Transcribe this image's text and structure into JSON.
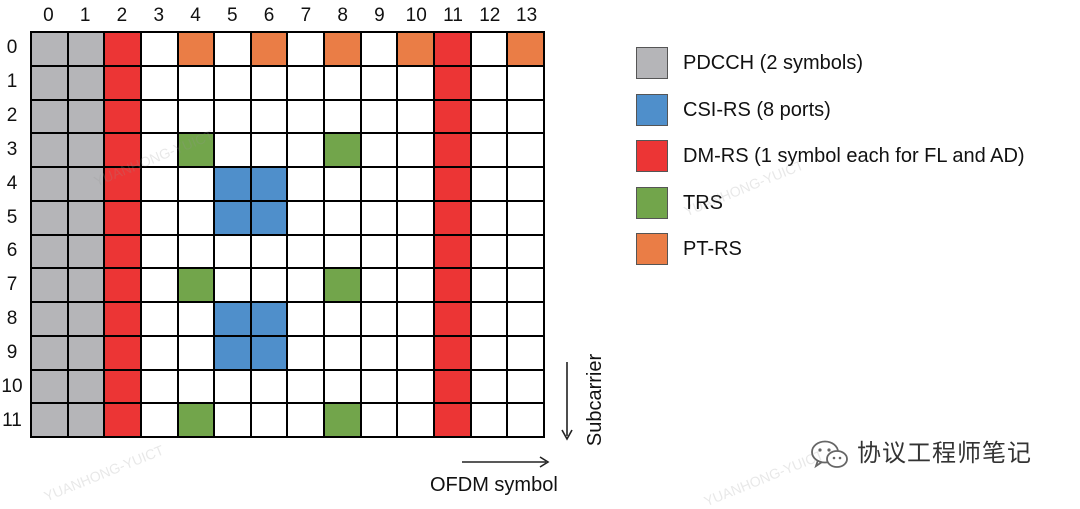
{
  "chart_data": {
    "type": "resource-grid",
    "x_axis_label": "OFDM symbol",
    "y_axis_label": "Subcarrier",
    "columns": [
      "0",
      "1",
      "2",
      "3",
      "4",
      "5",
      "6",
      "7",
      "8",
      "9",
      "10",
      "11",
      "12",
      "13"
    ],
    "rows": [
      "0",
      "1",
      "2",
      "3",
      "4",
      "5",
      "6",
      "7",
      "8",
      "9",
      "10",
      "11"
    ],
    "cells": [
      [
        "pdcch",
        "pdcch",
        "dmrs",
        "empty",
        "ptrs",
        "empty",
        "ptrs",
        "empty",
        "ptrs",
        "empty",
        "ptrs",
        "dmrs",
        "empty",
        "ptrs"
      ],
      [
        "pdcch",
        "pdcch",
        "dmrs",
        "empty",
        "empty",
        "empty",
        "empty",
        "empty",
        "empty",
        "empty",
        "empty",
        "dmrs",
        "empty",
        "empty"
      ],
      [
        "pdcch",
        "pdcch",
        "dmrs",
        "empty",
        "empty",
        "empty",
        "empty",
        "empty",
        "empty",
        "empty",
        "empty",
        "dmrs",
        "empty",
        "empty"
      ],
      [
        "pdcch",
        "pdcch",
        "dmrs",
        "empty",
        "trs",
        "empty",
        "empty",
        "empty",
        "trs",
        "empty",
        "empty",
        "dmrs",
        "empty",
        "empty"
      ],
      [
        "pdcch",
        "pdcch",
        "dmrs",
        "empty",
        "empty",
        "csirs",
        "csirs",
        "empty",
        "empty",
        "empty",
        "empty",
        "dmrs",
        "empty",
        "empty"
      ],
      [
        "pdcch",
        "pdcch",
        "dmrs",
        "empty",
        "empty",
        "csirs",
        "csirs",
        "empty",
        "empty",
        "empty",
        "empty",
        "dmrs",
        "empty",
        "empty"
      ],
      [
        "pdcch",
        "pdcch",
        "dmrs",
        "empty",
        "empty",
        "empty",
        "empty",
        "empty",
        "empty",
        "empty",
        "empty",
        "dmrs",
        "empty",
        "empty"
      ],
      [
        "pdcch",
        "pdcch",
        "dmrs",
        "empty",
        "trs",
        "empty",
        "empty",
        "empty",
        "trs",
        "empty",
        "empty",
        "dmrs",
        "empty",
        "empty"
      ],
      [
        "pdcch",
        "pdcch",
        "dmrs",
        "empty",
        "empty",
        "csirs",
        "csirs",
        "empty",
        "empty",
        "empty",
        "empty",
        "dmrs",
        "empty",
        "empty"
      ],
      [
        "pdcch",
        "pdcch",
        "dmrs",
        "empty",
        "empty",
        "csirs",
        "csirs",
        "empty",
        "empty",
        "empty",
        "empty",
        "dmrs",
        "empty",
        "empty"
      ],
      [
        "pdcch",
        "pdcch",
        "dmrs",
        "empty",
        "empty",
        "empty",
        "empty",
        "empty",
        "empty",
        "empty",
        "empty",
        "dmrs",
        "empty",
        "empty"
      ],
      [
        "pdcch",
        "pdcch",
        "dmrs",
        "empty",
        "trs",
        "empty",
        "empty",
        "empty",
        "trs",
        "empty",
        "empty",
        "dmrs",
        "empty",
        "empty"
      ]
    ],
    "legend": [
      {
        "key": "pdcch",
        "label": "PDCCH (2 symbols)",
        "color": "#b5b5b8"
      },
      {
        "key": "csirs",
        "label": "CSI-RS (8 ports)",
        "color": "#4f8fcb"
      },
      {
        "key": "dmrs",
        "label": "DM-RS (1 symbol each for FL and AD)",
        "color": "#ec3535"
      },
      {
        "key": "trs",
        "label": "TRS",
        "color": "#72a54b"
      },
      {
        "key": "ptrs",
        "label": "PT-RS",
        "color": "#ea7d46"
      }
    ],
    "empty_color": "#ffffff"
  },
  "watermark": {
    "account_name": "协议工程师笔记",
    "faint_text": "YUANHONG-YUICT"
  }
}
